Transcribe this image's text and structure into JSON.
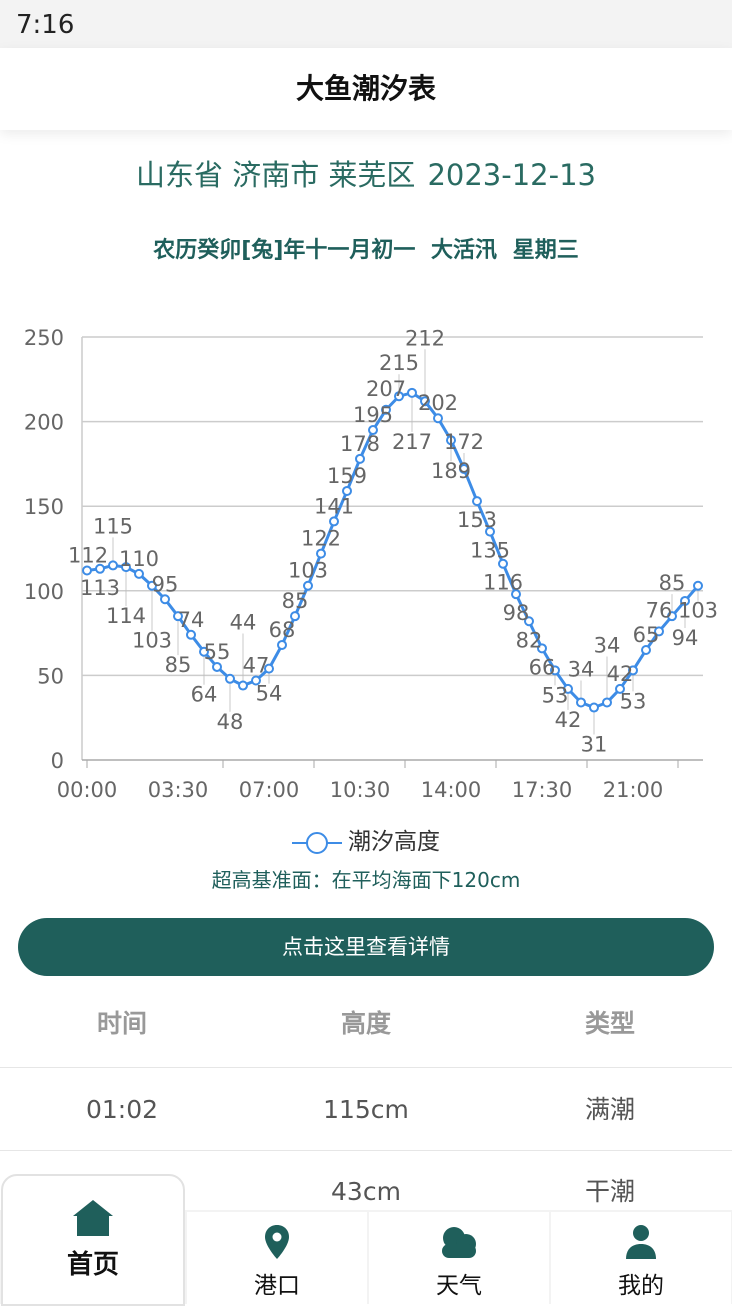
{
  "status": {
    "time": "7:16"
  },
  "header": {
    "title": "大鱼潮汐表"
  },
  "location": {
    "place": "山东省 济南市 莱芜区",
    "date": "2023-12-13"
  },
  "lunar": {
    "text": "农历癸卯[兔]年十一月初一  大活汛  星期三"
  },
  "chart_data": {
    "type": "line",
    "x": [
      "00:00",
      "00:30",
      "01:00",
      "01:30",
      "02:00",
      "02:30",
      "03:00",
      "03:30",
      "04:00",
      "04:30",
      "05:00",
      "05:30",
      "06:00",
      "06:30",
      "07:00",
      "07:30",
      "08:00",
      "08:30",
      "09:00",
      "09:30",
      "10:00",
      "10:30",
      "11:00",
      "11:30",
      "12:00",
      "12:30",
      "13:00",
      "13:30",
      "14:00",
      "14:30",
      "15:00",
      "15:30",
      "16:00",
      "16:30",
      "17:00",
      "17:30",
      "18:00",
      "18:30",
      "19:00",
      "19:30",
      "20:00",
      "20:30",
      "21:00",
      "21:30",
      "22:00",
      "22:30",
      "23:00",
      "23:30"
    ],
    "xticks": [
      "00:00",
      "03:30",
      "07:00",
      "10:30",
      "14:00",
      "17:30",
      "21:00"
    ],
    "series": [
      {
        "name": "潮汐高度",
        "color": "#3d8ce6",
        "values": [
          112,
          113,
          115,
          114,
          110,
          103,
          95,
          85,
          74,
          64,
          55,
          48,
          44,
          47,
          54,
          68,
          85,
          103,
          122,
          141,
          159,
          178,
          195,
          207,
          215,
          217,
          212,
          202,
          189,
          172,
          153,
          135,
          116,
          98,
          82,
          66,
          53,
          42,
          34,
          31,
          34,
          42,
          53,
          65,
          76,
          85,
          94,
          103
        ]
      }
    ],
    "yticks": [
      0,
      50,
      100,
      150,
      200,
      250
    ],
    "ylim": [
      0,
      250
    ],
    "grid": true,
    "legend": "bottom"
  },
  "note": "超高基准面：在平均海面下120cm",
  "detail_button": "点击这里查看详情",
  "table": {
    "headers": [
      "时间",
      "高度",
      "类型"
    ],
    "rows": [
      [
        "01:02",
        "115cm",
        "满潮"
      ],
      [
        "",
        "43cm",
        "干潮"
      ]
    ]
  },
  "nav": [
    {
      "label": "首页",
      "icon": "home-icon"
    },
    {
      "label": "港口",
      "icon": "location-pin-icon"
    },
    {
      "label": "天气",
      "icon": "cloud-icon"
    },
    {
      "label": "我的",
      "icon": "user-icon"
    }
  ],
  "colors": {
    "accent": "#1f5f5b",
    "line": "#3d8ce6"
  }
}
